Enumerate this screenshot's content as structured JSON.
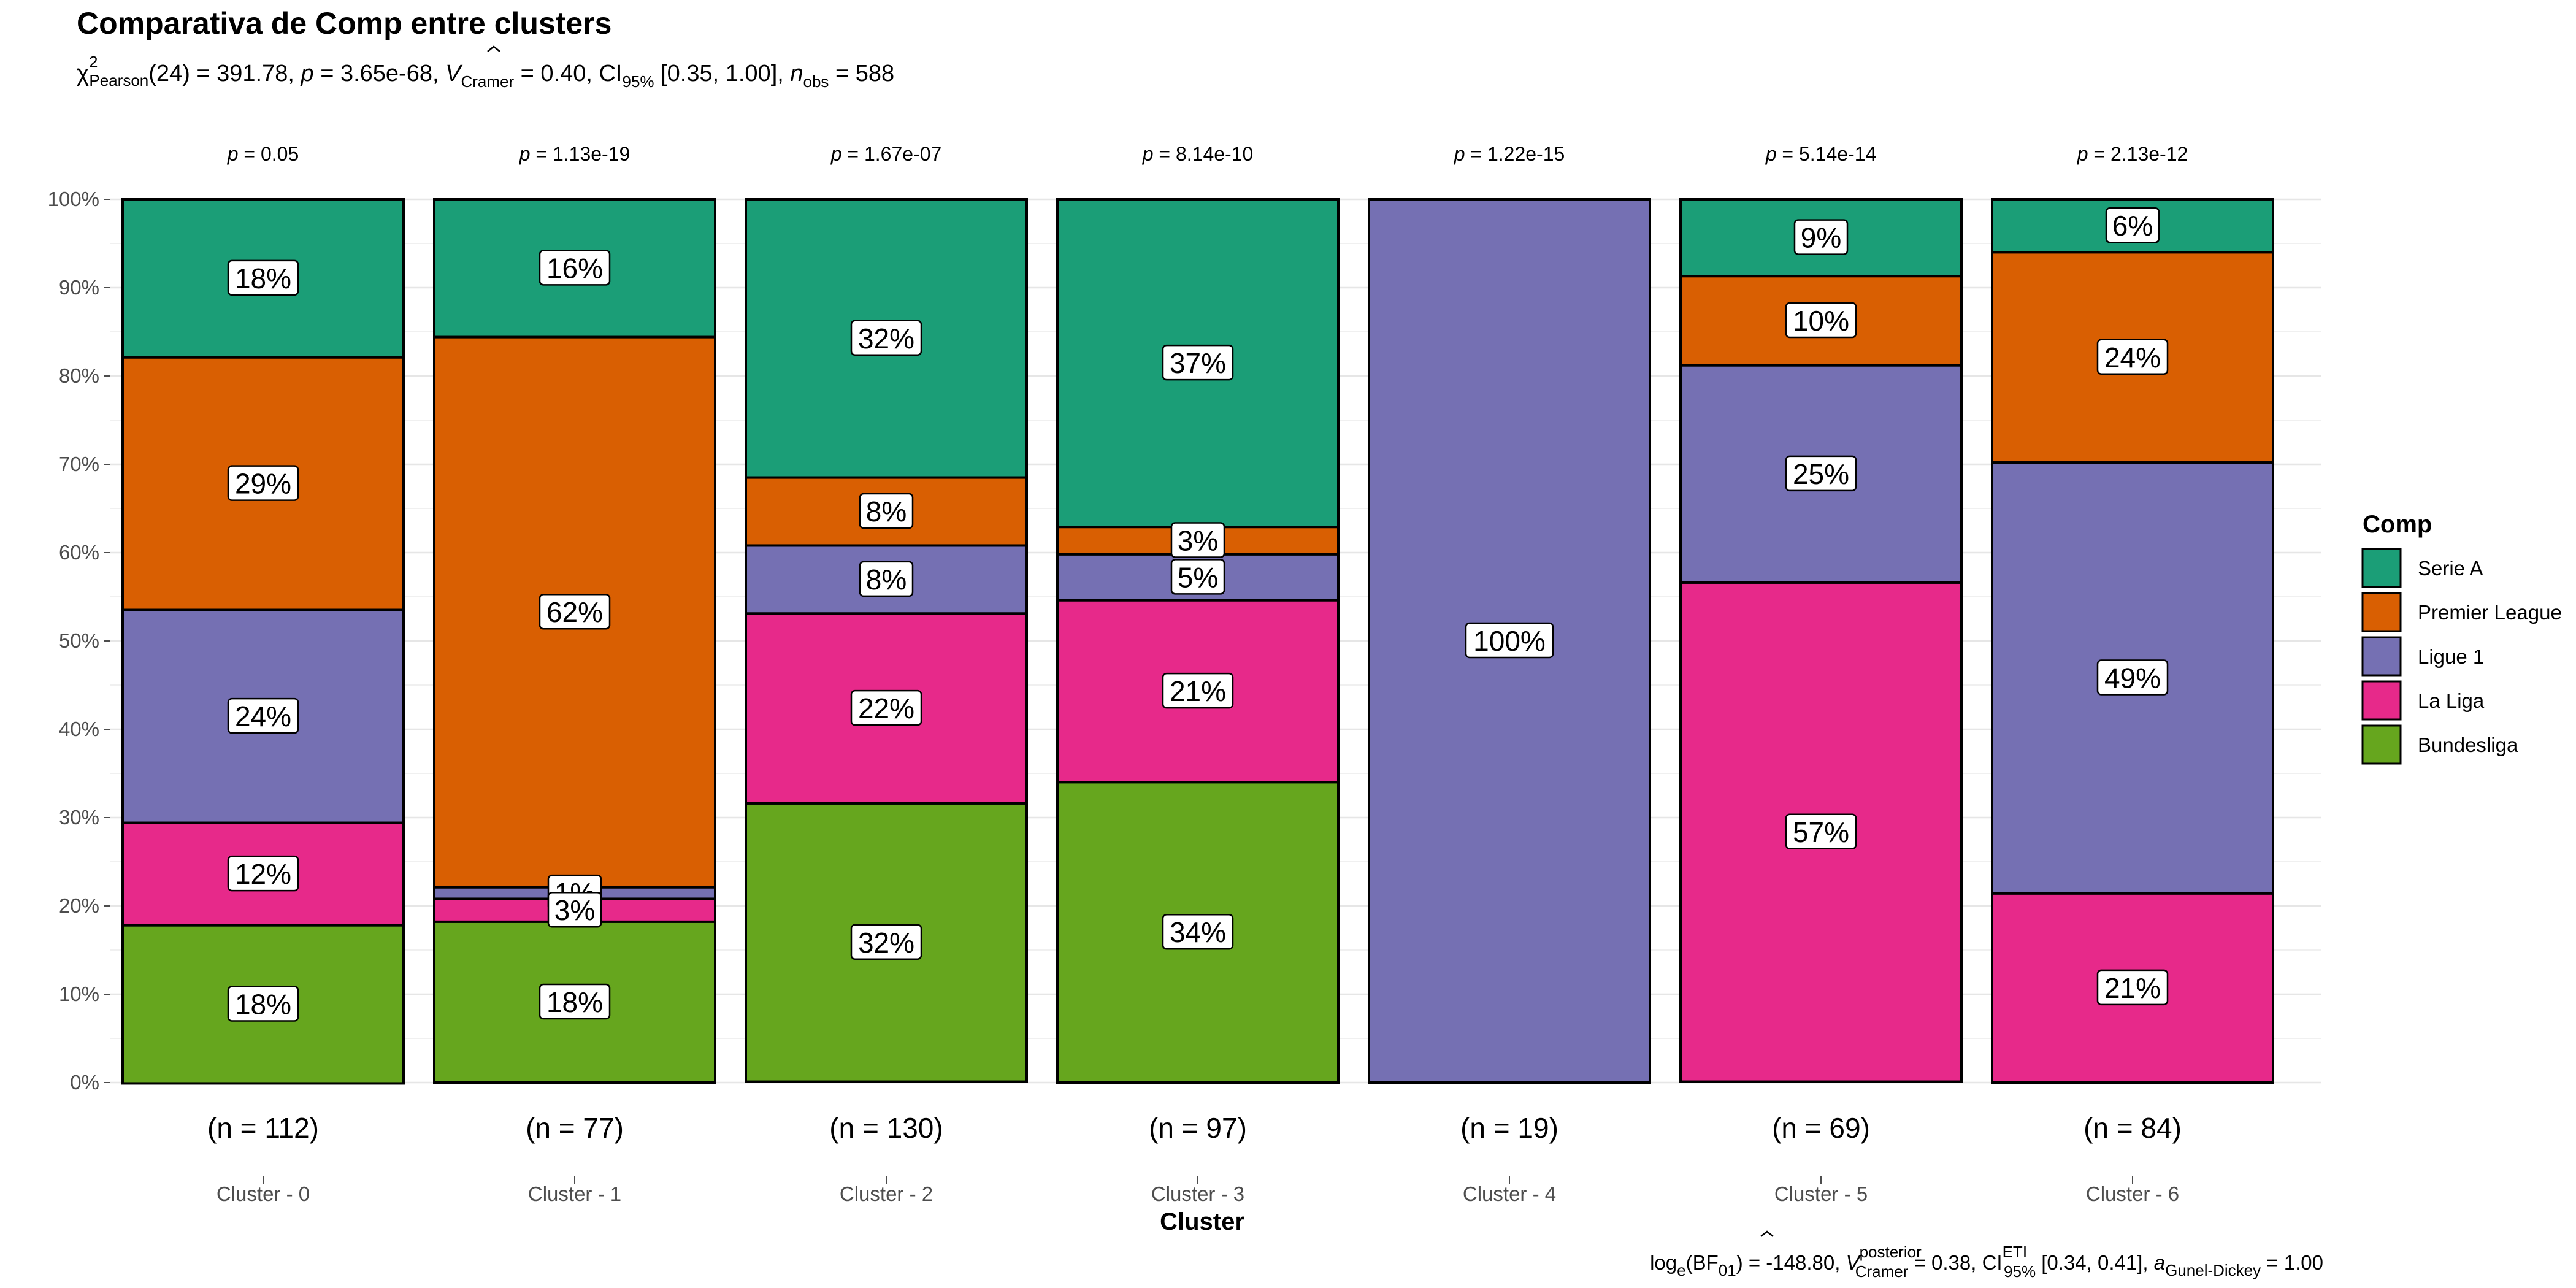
{
  "chart_data": {
    "type": "bar",
    "stacked": true,
    "percent": true,
    "title": "Comparativa de Comp entre clusters",
    "subtitle": {
      "chi": "χ",
      "chi_sup": "2",
      "chi_sub": "Pearson",
      "part1": "(24) = 391.78, ",
      "p_symbol": "p",
      "part2": " = 3.65e-68, ",
      "v_hat": "V",
      "v_sub": "Cramer",
      "part3": " = 0.40, CI",
      "ci_sub": "95%",
      "part4": " [0.35, 1.00], ",
      "n_symbol": "n",
      "n_sub": "obs",
      "part5": " = 588"
    },
    "caption": {
      "part1": "log",
      "sub1": "e",
      "part2": "(BF",
      "sub2": "01",
      "part3": ") = -148.80, ",
      "v_hat": "V",
      "v_sup": "posterior",
      "v_sub": "Cramer",
      "part4": " = 0.38, CI",
      "ci_sup": "ETI",
      "ci_sub": "95%",
      "part5": " [0.34, 0.41], ",
      "a_symbol": "a",
      "a_sub": "Gunel-Dickey",
      "part6": " = 1.00"
    },
    "xlabel": "Cluster",
    "ylabel": "",
    "ylim": [
      0,
      100
    ],
    "y_ticks": [
      "0%",
      "10%",
      "20%",
      "30%",
      "40%",
      "50%",
      "60%",
      "70%",
      "80%",
      "90%",
      "100%"
    ],
    "grid": true,
    "legend_title": "Comp",
    "legend_position": "right",
    "categories": [
      "Cluster - 0",
      "Cluster - 1",
      "Cluster - 2",
      "Cluster - 3",
      "Cluster - 4",
      "Cluster - 5",
      "Cluster - 6"
    ],
    "counts": [
      "(n = 112)",
      "(n = 77)",
      "(n = 130)",
      "(n = 97)",
      "(n = 19)",
      "(n = 69)",
      "(n = 84)"
    ],
    "p_values": [
      "0.05",
      "1.13e-19",
      "1.67e-07",
      "8.14e-10",
      "1.22e-15",
      "5.14e-14",
      "2.13e-12"
    ],
    "series": [
      {
        "name": "Serie A",
        "color": "#1B9E77",
        "values": [
          17.9,
          15.6,
          31.5,
          37.1,
          0,
          8.7,
          6.0
        ],
        "labels": [
          "18%",
          "16%",
          "32%",
          "37%",
          "",
          "9%",
          "6%"
        ]
      },
      {
        "name": "Premier League",
        "color": "#D95F02",
        "values": [
          28.6,
          62.3,
          7.7,
          3.1,
          0,
          10.1,
          23.8
        ],
        "labels": [
          "29%",
          "62%",
          "8%",
          "3%",
          "",
          "10%",
          "24%"
        ]
      },
      {
        "name": "Ligue 1",
        "color": "#7570B3",
        "values": [
          24.1,
          1.3,
          7.7,
          5.2,
          100,
          24.6,
          48.8
        ],
        "labels": [
          "24%",
          "1%",
          "8%",
          "5%",
          "100%",
          "25%",
          "49%"
        ]
      },
      {
        "name": "La Liga",
        "color": "#E7298A",
        "values": [
          11.6,
          2.6,
          21.5,
          20.6,
          0,
          56.5,
          21.4
        ],
        "labels": [
          "12%",
          "3%",
          "22%",
          "21%",
          "",
          "57%",
          "21%"
        ]
      },
      {
        "name": "Bundesliga",
        "color": "#66A61E",
        "values": [
          17.9,
          18.2,
          31.5,
          34.0,
          0,
          0,
          0
        ],
        "labels": [
          "18%",
          "18%",
          "32%",
          "34%",
          "",
          "",
          ""
        ]
      }
    ]
  }
}
